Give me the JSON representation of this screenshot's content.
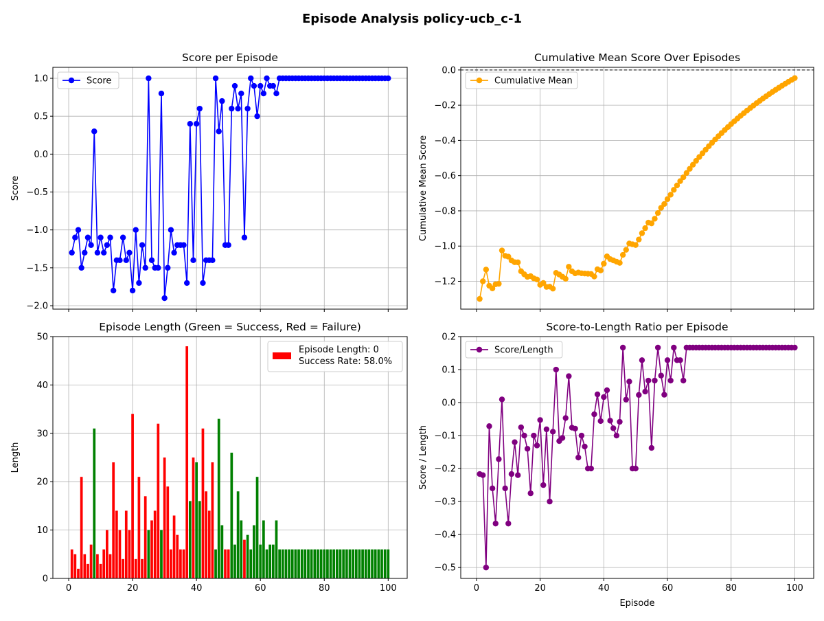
{
  "figure": {
    "suptitle": "Episode Analysis policy-ucb_c-1"
  },
  "chart_data": [
    {
      "id": "score",
      "type": "line",
      "title": "Score per Episode",
      "xlabel": "",
      "ylabel": "Score",
      "xlim": [
        -4.95,
        105.95
      ],
      "ylim": [
        -2.045,
        1.145
      ],
      "xticks": [
        0,
        20,
        40,
        60,
        80,
        100
      ],
      "xtick_labels": [
        "",
        "",
        "",
        "",
        "",
        ""
      ],
      "yticks": [
        -2.0,
        -1.5,
        -1.0,
        -0.5,
        0.0,
        0.5,
        1.0
      ],
      "ytick_labels": [
        "−2.0",
        "−1.5",
        "−1.0",
        "−0.5",
        "0.0",
        "0.5",
        "1.0"
      ],
      "grid": true,
      "legend_position": "upper-left",
      "series": [
        {
          "name": "Score",
          "color": "#0000ff",
          "marker": "circle",
          "x": [
            1,
            2,
            3,
            4,
            5,
            6,
            7,
            8,
            9,
            10,
            11,
            12,
            13,
            14,
            15,
            16,
            17,
            18,
            19,
            20,
            21,
            22,
            23,
            24,
            25,
            26,
            27,
            28,
            29,
            30,
            31,
            32,
            33,
            34,
            35,
            36,
            37,
            38,
            39,
            40,
            41,
            42,
            43,
            44,
            45,
            46,
            47,
            48,
            49,
            50,
            51,
            52,
            53,
            54,
            55,
            56,
            57,
            58,
            59,
            60,
            61,
            62,
            63,
            64,
            65,
            66,
            67,
            68,
            69,
            70,
            71,
            72,
            73,
            74,
            75,
            76,
            77,
            78,
            79,
            80,
            81,
            82,
            83,
            84,
            85,
            86,
            87,
            88,
            89,
            90,
            91,
            92,
            93,
            94,
            95,
            96,
            97,
            98,
            99,
            100
          ],
          "y": [
            -1.3,
            -1.1,
            -1.0,
            -1.5,
            -1.3,
            -1.1,
            -1.2,
            0.3,
            -1.3,
            -1.1,
            -1.3,
            -1.2,
            -1.1,
            -1.8,
            -1.4,
            -1.4,
            -1.1,
            -1.4,
            -1.3,
            -1.8,
            -1.0,
            -1.7,
            -1.2,
            -1.5,
            1.0,
            -1.4,
            -1.5,
            -1.5,
            0.8,
            -1.9,
            -1.5,
            -1.0,
            -1.3,
            -1.2,
            -1.2,
            -1.2,
            -1.7,
            0.4,
            -1.4,
            0.4,
            0.6,
            -1.7,
            -1.4,
            -1.4,
            -1.4,
            1.0,
            0.3,
            0.7,
            -1.2,
            -1.2,
            0.6,
            0.9,
            0.6,
            0.8,
            -1.1,
            0.6,
            1.0,
            0.9,
            0.5,
            0.9,
            0.8,
            1.0,
            0.9,
            0.9,
            0.8,
            1.0,
            1.0,
            1.0,
            1.0,
            1.0,
            1.0,
            1.0,
            1.0,
            1.0,
            1.0,
            1.0,
            1.0,
            1.0,
            1.0,
            1.0,
            1.0,
            1.0,
            1.0,
            1.0,
            1.0,
            1.0,
            1.0,
            1.0,
            1.0,
            1.0,
            1.0,
            1.0,
            1.0,
            1.0,
            1.0,
            1.0,
            1.0,
            1.0,
            1.0,
            1.0
          ]
        }
      ]
    },
    {
      "id": "cummean",
      "type": "line",
      "title": "Cumulative Mean Score Over Episodes",
      "xlabel": "",
      "ylabel": "Cumulative Mean Score",
      "xlim": [
        -4.95,
        105.95
      ],
      "ylim": [
        -1.358,
        0.015
      ],
      "xticks": [
        0,
        20,
        40,
        60,
        80,
        100
      ],
      "xtick_labels": [
        "",
        "",
        "",
        "",
        "",
        ""
      ],
      "yticks": [
        -1.2,
        -1.0,
        -0.8,
        -0.6,
        -0.4,
        -0.2,
        0.0
      ],
      "ytick_labels": [
        "−1.2",
        "−1.0",
        "−0.8",
        "−0.6",
        "−0.4",
        "−0.2",
        "0.0"
      ],
      "grid": true,
      "legend_position": "upper-left",
      "reference_line": {
        "y": 0,
        "style": "dashed",
        "color": "#000000"
      },
      "series": [
        {
          "name": "Cumulative Mean",
          "color": "#ffa500",
          "marker": "circle",
          "from_series": "score",
          "transform": "cumulative_mean"
        }
      ]
    },
    {
      "id": "length",
      "type": "bar",
      "title": "Episode Length (Green = Success, Red = Failure)",
      "xlabel": "",
      "ylabel": "Length",
      "xlim": [
        -4.95,
        105.95
      ],
      "ylim": [
        0,
        50
      ],
      "xticks": [
        0,
        20,
        40,
        60,
        80,
        100
      ],
      "xtick_labels": [
        "0",
        "20",
        "40",
        "60",
        "80",
        "100"
      ],
      "yticks": [
        0,
        10,
        20,
        30,
        40,
        50
      ],
      "ytick_labels": [
        "0",
        "10",
        "20",
        "30",
        "40",
        "50"
      ],
      "grid": true,
      "legend_position": "upper-right",
      "legend": {
        "swatch_color": "#ff0000",
        "lines": [
          "Episode Length: 0",
          "Success Rate: 58.0%"
        ]
      },
      "success_color": "#008000",
      "failure_color": "#ff0000",
      "x": [
        1,
        2,
        3,
        4,
        5,
        6,
        7,
        8,
        9,
        10,
        11,
        12,
        13,
        14,
        15,
        16,
        17,
        18,
        19,
        20,
        21,
        22,
        23,
        24,
        25,
        26,
        27,
        28,
        29,
        30,
        31,
        32,
        33,
        34,
        35,
        36,
        37,
        38,
        39,
        40,
        41,
        42,
        43,
        44,
        45,
        46,
        47,
        48,
        49,
        50,
        51,
        52,
        53,
        54,
        55,
        56,
        57,
        58,
        59,
        60,
        61,
        62,
        63,
        64,
        65,
        66,
        67,
        68,
        69,
        70,
        71,
        72,
        73,
        74,
        75,
        76,
        77,
        78,
        79,
        80,
        81,
        82,
        83,
        84,
        85,
        86,
        87,
        88,
        89,
        90,
        91,
        92,
        93,
        94,
        95,
        96,
        97,
        98,
        99,
        100
      ],
      "values": [
        6,
        5,
        2,
        21,
        5,
        3,
        7,
        31,
        5,
        3,
        6,
        10,
        5,
        24,
        14,
        10,
        4,
        14,
        10,
        34,
        4,
        21,
        4,
        17,
        10,
        12,
        14,
        32,
        10,
        25,
        19,
        6,
        13,
        9,
        6,
        6,
        48,
        16,
        25,
        24,
        16,
        31,
        18,
        14,
        24,
        6,
        33,
        11,
        6,
        6,
        26,
        7,
        18,
        12,
        8,
        9,
        6,
        11,
        21,
        7,
        12,
        6,
        7,
        7,
        12,
        6,
        6,
        6,
        6,
        6,
        6,
        6,
        6,
        6,
        6,
        6,
        6,
        6,
        6,
        6,
        6,
        6,
        6,
        6,
        6,
        6,
        6,
        6,
        6,
        6,
        6,
        6,
        6,
        6,
        6,
        6,
        6,
        6,
        6,
        6
      ],
      "success": [
        false,
        false,
        false,
        false,
        false,
        false,
        false,
        true,
        false,
        false,
        false,
        false,
        false,
        false,
        false,
        false,
        false,
        false,
        false,
        false,
        false,
        false,
        false,
        false,
        true,
        false,
        false,
        false,
        true,
        false,
        false,
        false,
        false,
        false,
        false,
        false,
        false,
        true,
        false,
        true,
        true,
        false,
        false,
        false,
        false,
        true,
        true,
        true,
        false,
        false,
        true,
        true,
        true,
        true,
        false,
        true,
        true,
        true,
        true,
        true,
        true,
        true,
        true,
        true,
        true,
        true,
        true,
        true,
        true,
        true,
        true,
        true,
        true,
        true,
        true,
        true,
        true,
        true,
        true,
        true,
        true,
        true,
        true,
        true,
        true,
        true,
        true,
        true,
        true,
        true,
        true,
        true,
        true,
        true,
        true,
        true,
        true,
        true,
        true,
        true
      ]
    },
    {
      "id": "ratio",
      "type": "line",
      "title": "Score-to-Length Ratio per Episode",
      "xlabel": "Episode",
      "ylabel": "Score / Length",
      "xlim": [
        -4.95,
        105.95
      ],
      "ylim": [
        -0.533,
        0.2
      ],
      "xticks": [
        0,
        20,
        40,
        60,
        80,
        100
      ],
      "xtick_labels": [
        "0",
        "20",
        "40",
        "60",
        "80",
        "100"
      ],
      "yticks": [
        -0.5,
        -0.4,
        -0.3,
        -0.2,
        -0.1,
        0.0,
        0.1,
        0.2
      ],
      "ytick_labels": [
        "−0.5",
        "−0.4",
        "−0.3",
        "−0.2",
        "−0.1",
        "0.0",
        "0.1",
        "0.2"
      ],
      "grid": true,
      "legend_position": "upper-left",
      "series": [
        {
          "name": "Score/Length",
          "color": "#800080",
          "marker": "circle",
          "from_series": [
            "score",
            "length"
          ],
          "transform": "ratio"
        }
      ]
    }
  ]
}
